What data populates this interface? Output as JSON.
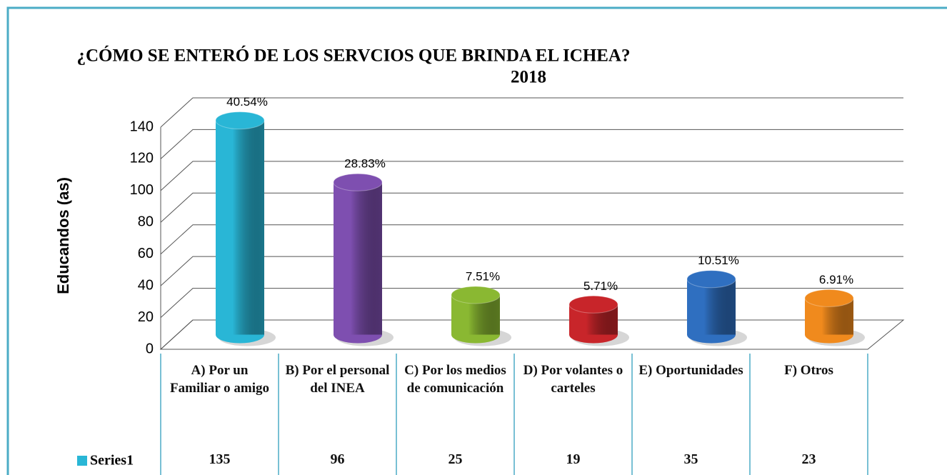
{
  "chart_data": {
    "type": "bar3d",
    "title_lines": [
      "¿CÓMO SE ENTERÓ DE LOS SERVCIOS QUE BRINDA EL ICHEA?",
      "2018"
    ],
    "ylabel": "Educandos (as)",
    "categories": [
      "A) Por un Familiar o amigo",
      "B) Por el personal del INEA",
      "C) Por los medios de comunicación",
      "D) Por volantes o carteles",
      "E) Oportunidades",
      "F) Otros"
    ],
    "series": [
      {
        "name": "Series1",
        "color": "#29b6d6",
        "values": [
          135,
          96,
          25,
          19,
          35,
          23
        ],
        "colors": [
          "#29b6d6",
          "#7e4fb0",
          "#8ab832",
          "#c8252a",
          "#2f6fc0",
          "#f08a1d"
        ],
        "percent_labels": [
          "40.54%",
          "28.83%",
          "7.51%",
          "5.71%",
          "10.51%",
          "6.91%"
        ]
      }
    ],
    "ylim": [
      0,
      140
    ],
    "yticks": [
      0,
      20,
      40,
      60,
      80,
      100,
      120,
      140
    ],
    "grid": true,
    "data_table": true
  }
}
